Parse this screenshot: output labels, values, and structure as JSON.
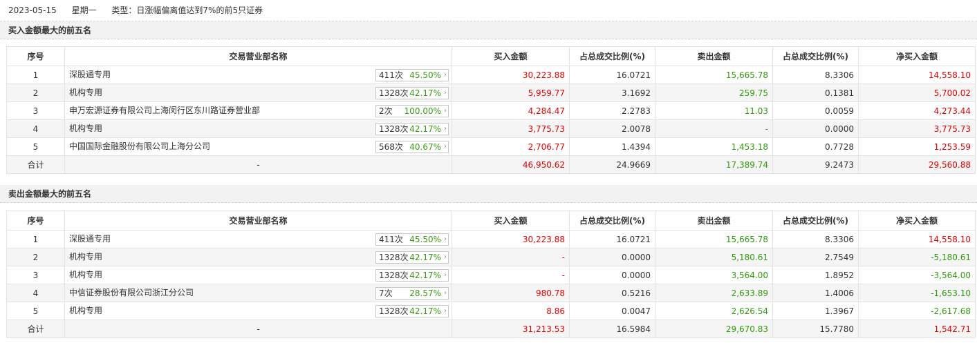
{
  "header": {
    "date": "2023-05-15",
    "weekday": "星期一",
    "type": "类型：日涨幅偏离值达到7%的前5只证券"
  },
  "columns": [
    "序号",
    "交易营业部名称",
    "买入金额",
    "占总成交比例(%)",
    "卖出金额",
    "占总成交比例(%)",
    "净买入金额"
  ],
  "buy_section": {
    "title": "买入金额最大的前五名",
    "rows": [
      {
        "no": "1",
        "name": "深股通专用",
        "count": "411次",
        "pct": "45.50%",
        "buy": "30,223.88",
        "buy_ratio": "16.0721",
        "sell": "15,665.78",
        "sell_ratio": "8.3306",
        "net": "14,558.10"
      },
      {
        "no": "2",
        "name": "机构专用",
        "count": "1328次",
        "pct": "42.17%",
        "buy": "5,959.77",
        "buy_ratio": "3.1692",
        "sell": "259.75",
        "sell_ratio": "0.1381",
        "net": "5,700.02"
      },
      {
        "no": "3",
        "name": "申万宏源证券有限公司上海闵行区东川路证券营业部",
        "count": "2次",
        "pct": "100.00%",
        "buy": "4,284.47",
        "buy_ratio": "2.2783",
        "sell": "11.03",
        "sell_ratio": "0.0059",
        "net": "4,273.44"
      },
      {
        "no": "4",
        "name": "机构专用",
        "count": "1328次",
        "pct": "42.17%",
        "buy": "3,775.73",
        "buy_ratio": "2.0078",
        "sell": "-",
        "sell_ratio": "0.0000",
        "net": "3,775.73"
      },
      {
        "no": "5",
        "name": "中国国际金融股份有限公司上海分公司",
        "count": "568次",
        "pct": "40.67%",
        "buy": "2,706.77",
        "buy_ratio": "1.4394",
        "sell": "1,453.18",
        "sell_ratio": "0.7728",
        "net": "1,253.59"
      }
    ],
    "total": {
      "label": "合计",
      "name": "-",
      "buy": "46,950.62",
      "buy_ratio": "24.9669",
      "sell": "17,389.74",
      "sell_ratio": "9.2473",
      "net": "29,560.88"
    }
  },
  "sell_section": {
    "title": "卖出金额最大的前五名",
    "rows": [
      {
        "no": "1",
        "name": "深股通专用",
        "count": "411次",
        "pct": "45.50%",
        "buy": "30,223.88",
        "buy_ratio": "16.0721",
        "sell": "15,665.78",
        "sell_ratio": "8.3306",
        "net": "14,558.10"
      },
      {
        "no": "2",
        "name": "机构专用",
        "count": "1328次",
        "pct": "42.17%",
        "buy": "-",
        "buy_ratio": "0.0000",
        "sell": "5,180.61",
        "sell_ratio": "2.7549",
        "net": "-5,180.61"
      },
      {
        "no": "3",
        "name": "机构专用",
        "count": "1328次",
        "pct": "42.17%",
        "buy": "-",
        "buy_ratio": "0.0000",
        "sell": "3,564.00",
        "sell_ratio": "1.8952",
        "net": "-3,564.00"
      },
      {
        "no": "4",
        "name": "中信证券股份有限公司浙江分公司",
        "count": "7次",
        "pct": "28.57%",
        "buy": "980.78",
        "buy_ratio": "0.5216",
        "sell": "2,633.89",
        "sell_ratio": "1.4006",
        "net": "-1,653.10"
      },
      {
        "no": "5",
        "name": "机构专用",
        "count": "1328次",
        "pct": "42.17%",
        "buy": "8.86",
        "buy_ratio": "0.0047",
        "sell": "2,626.54",
        "sell_ratio": "1.3967",
        "net": "-2,617.68"
      }
    ],
    "total": {
      "label": "合计",
      "name": "-",
      "buy": "31,213.53",
      "buy_ratio": "16.5984",
      "sell": "29,670.83",
      "sell_ratio": "15.7780",
      "net": "1,542.71"
    }
  },
  "icons": {
    "stat_arrow": "chevron-right-icon",
    "arrow_glyph": "›"
  },
  "colors": {
    "buy": "#e60000",
    "sell": "#2f9a0a",
    "net_positive": "#e60000",
    "net_negative": "#2f9a0a",
    "pct": "#3a9a14"
  }
}
